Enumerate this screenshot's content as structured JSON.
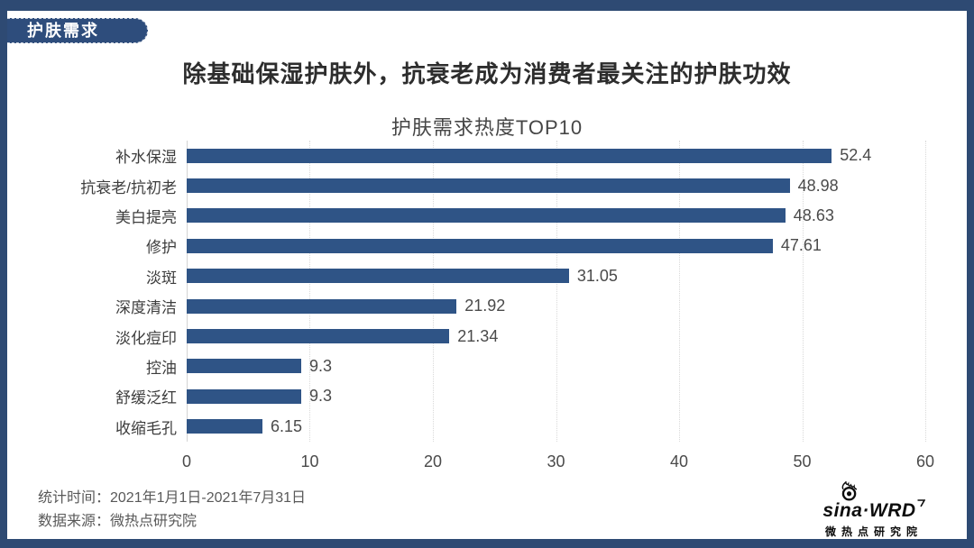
{
  "page": {
    "badge": "护肤需求",
    "title": "除基础保湿护肤外，抗衰老成为消费者最关注的护肤功效"
  },
  "chart_data": {
    "type": "bar",
    "orientation": "horizontal",
    "title": "护肤需求热度TOP10",
    "categories": [
      "补水保湿",
      "抗衰老/抗初老",
      "美白提亮",
      "修护",
      "淡斑",
      "深度清洁",
      "淡化痘印",
      "控油",
      "舒缓泛红",
      "收缩毛孔"
    ],
    "values": [
      52.4,
      48.98,
      48.63,
      47.61,
      31.05,
      21.92,
      21.34,
      9.3,
      9.3,
      6.15
    ],
    "value_labels": [
      "52.4",
      "48.98",
      "48.63",
      "47.61",
      "31.05",
      "21.92",
      "21.34",
      "9.3",
      "9.3",
      "6.15"
    ],
    "xlabel": "",
    "ylabel": "",
    "xlim": [
      0,
      60
    ],
    "xticks": [
      0,
      10,
      20,
      30,
      40,
      50,
      60
    ],
    "grid": "vertical-dotted",
    "legend": "none",
    "bar_color": "#2F5486"
  },
  "footer": {
    "stat_time": "统计时间：2021年1月1日-2021年7月31日",
    "data_source": "数据来源：微热点研究院"
  },
  "logo": {
    "brand": "sina·WRD",
    "subtitle": "微热点研究院"
  },
  "colors": {
    "frame": "#2E4A73",
    "badge_bg": "#2E4D7C",
    "bar": "#2F5486",
    "gridline": "#D9D9D9",
    "title_text": "#2D2D2D",
    "body_text": "#4A4A4A",
    "footer_text": "#595959"
  }
}
